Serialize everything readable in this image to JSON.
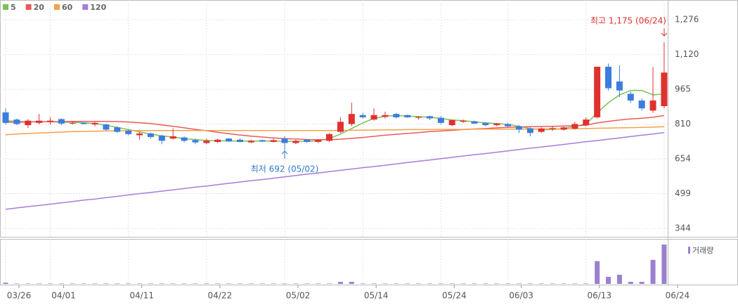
{
  "chart_data": {
    "type": "candlestick",
    "categories": [
      "03/26",
      null,
      null,
      null,
      "04/01",
      null,
      null,
      null,
      null,
      null,
      null,
      "04/11",
      null,
      null,
      null,
      null,
      null,
      null,
      "04/22",
      null,
      null,
      null,
      null,
      null,
      null,
      "05/02",
      null,
      null,
      null,
      null,
      null,
      null,
      "05/14",
      null,
      null,
      null,
      null,
      null,
      null,
      "05/24",
      null,
      null,
      null,
      null,
      null,
      "06/03",
      null,
      null,
      null,
      null,
      null,
      null,
      "06/13",
      null,
      null,
      null,
      null,
      null,
      null,
      "06/24"
    ],
    "open": [
      862,
      830,
      805,
      815,
      820,
      832,
      812,
      815,
      808,
      808,
      795,
      780,
      760,
      768,
      758,
      745,
      750,
      738,
      725,
      730,
      745,
      740,
      728,
      738,
      730,
      745,
      725,
      740,
      730,
      735,
      775,
      810,
      850,
      830,
      842,
      855,
      850,
      838,
      845,
      838,
      805,
      820,
      822,
      815,
      805,
      810,
      800,
      790,
      775,
      788,
      785,
      790,
      805,
      840,
      1066,
      1000,
      945,
      915,
      870,
      890
    ],
    "high": [
      880,
      835,
      832,
      855,
      840,
      835,
      820,
      818,
      820,
      812,
      800,
      785,
      775,
      772,
      762,
      790,
      755,
      745,
      745,
      745,
      748,
      745,
      740,
      740,
      745,
      755,
      740,
      742,
      740,
      770,
      840,
      905,
      860,
      880,
      865,
      860,
      852,
      845,
      848,
      845,
      830,
      830,
      825,
      818,
      815,
      815,
      805,
      795,
      795,
      800,
      800,
      820,
      840,
      1066,
      1080,
      1072,
      955,
      925,
      1065,
      1175
    ],
    "low": [
      808,
      805,
      792,
      808,
      808,
      805,
      808,
      808,
      800,
      780,
      770,
      760,
      740,
      745,
      720,
      740,
      728,
      720,
      720,
      725,
      730,
      728,
      725,
      730,
      728,
      692,
      720,
      725,
      725,
      730,
      770,
      800,
      835,
      825,
      835,
      835,
      838,
      830,
      828,
      810,
      800,
      815,
      810,
      800,
      800,
      795,
      770,
      755,
      770,
      780,
      780,
      785,
      800,
      835,
      960,
      930,
      905,
      870,
      860,
      880
    ],
    "close": [
      815,
      810,
      825,
      825,
      825,
      812,
      815,
      810,
      815,
      785,
      775,
      765,
      768,
      752,
      735,
      755,
      735,
      728,
      735,
      740,
      732,
      730,
      735,
      732,
      738,
      725,
      735,
      730,
      738,
      765,
      820,
      855,
      840,
      850,
      850,
      840,
      840,
      842,
      835,
      815,
      828,
      825,
      812,
      805,
      812,
      800,
      785,
      770,
      790,
      792,
      795,
      810,
      830,
      1066,
      970,
      960,
      915,
      880,
      915,
      1040
    ],
    "up_color": "#e0312f",
    "down_color": "#3b7ddd",
    "series": [
      {
        "name": "5",
        "color": "#7bc25a",
        "values": [
          825,
          822,
          820,
          820,
          820,
          818,
          818,
          815,
          812,
          805,
          795,
          785,
          775,
          765,
          757,
          752,
          745,
          740,
          737,
          735,
          735,
          734,
          734,
          734,
          734,
          732,
          732,
          733,
          735,
          745,
          765,
          790,
          815,
          835,
          845,
          848,
          845,
          843,
          840,
          835,
          828,
          825,
          820,
          815,
          812,
          808,
          800,
          790,
          785,
          785,
          790,
          800,
          810,
          860,
          905,
          940,
          960,
          960,
          940,
          945
        ]
      },
      {
        "name": "20",
        "color": "#ea5a5a",
        "values": [
          818,
          818,
          819,
          820,
          820,
          821,
          822,
          822,
          822,
          822,
          821,
          819,
          816,
          812,
          806,
          800,
          793,
          786,
          780,
          773,
          767,
          761,
          756,
          752,
          748,
          745,
          743,
          741,
          740,
          740,
          742,
          746,
          750,
          755,
          760,
          764,
          768,
          772,
          776,
          779,
          782,
          785,
          788,
          790,
          793,
          795,
          797,
          798,
          799,
          800,
          801,
          802,
          805,
          815,
          822,
          828,
          833,
          836,
          840,
          848
        ]
      },
      {
        "name": "60",
        "color": "#f5a04a",
        "values": [
          762,
          765,
          768,
          770,
          772,
          774,
          776,
          777,
          778,
          779,
          780,
          780,
          781,
          781,
          781,
          781,
          781,
          781,
          781,
          781,
          781,
          781,
          781,
          781,
          781,
          781,
          781,
          781,
          781,
          781,
          782,
          782,
          783,
          783,
          784,
          784,
          785,
          785,
          785,
          786,
          786,
          786,
          787,
          787,
          787,
          787,
          787,
          788,
          788,
          788,
          789,
          789,
          790,
          791,
          792,
          793,
          794,
          795,
          796,
          798
        ]
      },
      {
        "name": "120",
        "color": "#a67ddc",
        "values": [
          429,
          435,
          441,
          446,
          452,
          458,
          464,
          470,
          475,
          481,
          487,
          493,
          499,
          504,
          510,
          516,
          522,
          528,
          533,
          539,
          545,
          551,
          557,
          562,
          568,
          574,
          580,
          586,
          591,
          597,
          603,
          609,
          615,
          620,
          626,
          632,
          638,
          644,
          649,
          655,
          661,
          667,
          673,
          678,
          684,
          690,
          696,
          702,
          707,
          713,
          719,
          725,
          731,
          736,
          742,
          748,
          754,
          760,
          765,
          772
        ]
      }
    ],
    "volume": {
      "name": "거래량",
      "color": "#9b80cf",
      "values": [
        3,
        1,
        1,
        1,
        1,
        1,
        1,
        1,
        1,
        1,
        1,
        1,
        1,
        1,
        1,
        1,
        1,
        1,
        1,
        1,
        1,
        1,
        1,
        1,
        1,
        1,
        1,
        1,
        1,
        1,
        5,
        5,
        1,
        1,
        1,
        1,
        1,
        1,
        1,
        1,
        1,
        1,
        1,
        1,
        1,
        1,
        1,
        1,
        1,
        1,
        1,
        1,
        1,
        55,
        17,
        22,
        5,
        5,
        58,
        95
      ]
    },
    "ylim": [
      306,
      1339
    ],
    "yticks": [
      {
        "value": 1276,
        "label": "1,276"
      },
      {
        "value": 1120,
        "label": "1,120"
      },
      965,
      810,
      654,
      499,
      344
    ],
    "grid": true,
    "annotations": [
      {
        "text": "최고 1,175 (06/24)",
        "color": "#e0312f"
      },
      {
        "text": "최저 692 (05/02)",
        "color": "#2f7bd0"
      }
    ]
  }
}
